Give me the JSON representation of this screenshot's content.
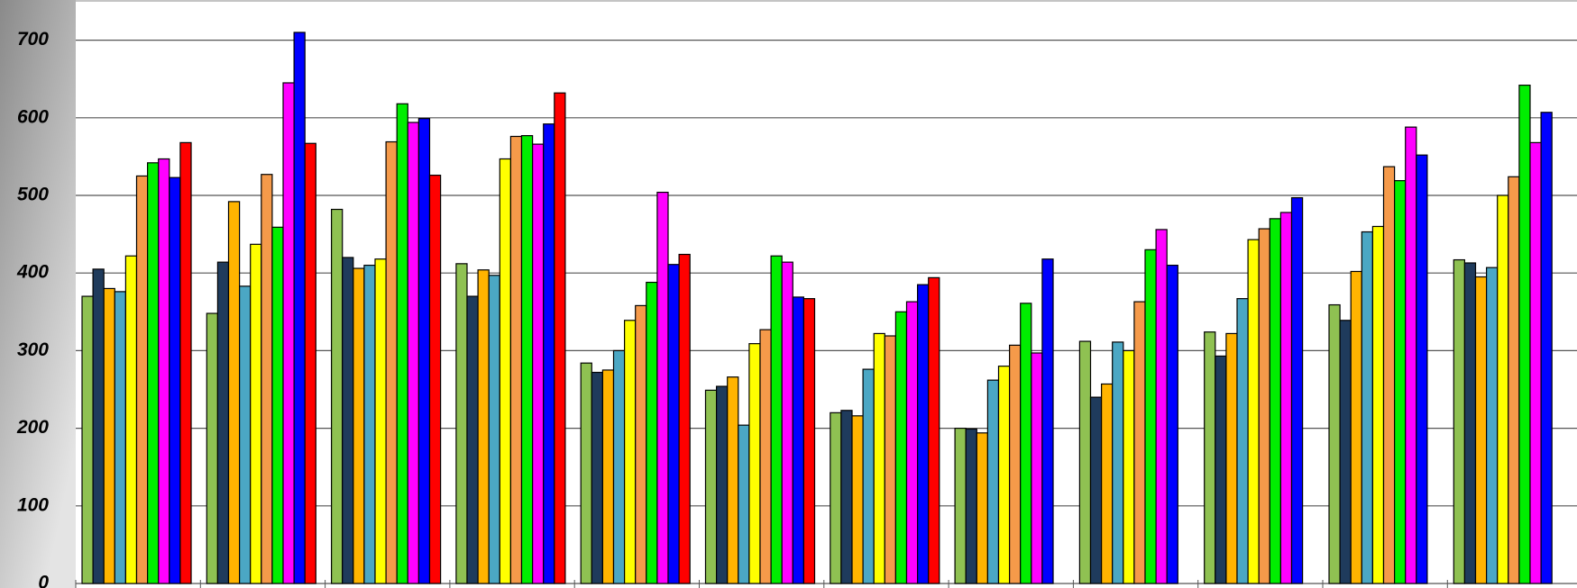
{
  "chart_data": {
    "type": "bar",
    "categories": [
      null,
      null,
      null,
      null,
      null,
      null,
      null,
      null,
      null,
      null,
      null,
      null
    ],
    "series": [
      {
        "color": "#8fc152",
        "values": [
          370,
          348,
          482,
          412,
          284,
          249,
          220,
          200,
          312,
          324,
          359,
          417
        ]
      },
      {
        "color": "#1f3b5c",
        "values": [
          405,
          414,
          420,
          370,
          272,
          254,
          223,
          199,
          240,
          293,
          339,
          413
        ]
      },
      {
        "color": "#ffb400",
        "values": [
          380,
          492,
          406,
          404,
          275,
          266,
          216,
          194,
          257,
          322,
          402,
          395
        ]
      },
      {
        "color": "#4ba7c4",
        "values": [
          376,
          383,
          410,
          397,
          300,
          204,
          276,
          262,
          311,
          367,
          453,
          407
        ]
      },
      {
        "color": "#ffff00",
        "values": [
          422,
          437,
          418,
          547,
          339,
          309,
          322,
          280,
          300,
          443,
          460,
          500
        ]
      },
      {
        "color": "#f59a4a",
        "values": [
          525,
          527,
          569,
          576,
          358,
          327,
          319,
          307,
          363,
          457,
          537,
          524
        ]
      },
      {
        "color": "#00ee00",
        "values": [
          542,
          459,
          618,
          577,
          388,
          422,
          350,
          361,
          430,
          470,
          519,
          642
        ]
      },
      {
        "color": "#ff00ff",
        "values": [
          547,
          645,
          594,
          566,
          504,
          414,
          363,
          297,
          456,
          478,
          588,
          568
        ]
      },
      {
        "color": "#0000ff",
        "values": [
          523,
          710,
          599,
          592,
          411,
          369,
          385,
          418,
          410,
          497,
          552,
          607
        ]
      },
      {
        "color": "#ff0000",
        "values": [
          568,
          567,
          526,
          632,
          424,
          367,
          394,
          null,
          null,
          null,
          null,
          null
        ]
      }
    ],
    "ylim": [
      0,
      750
    ],
    "yticks": [
      0,
      100,
      200,
      300,
      400,
      500,
      600,
      700
    ],
    "grid": true
  }
}
